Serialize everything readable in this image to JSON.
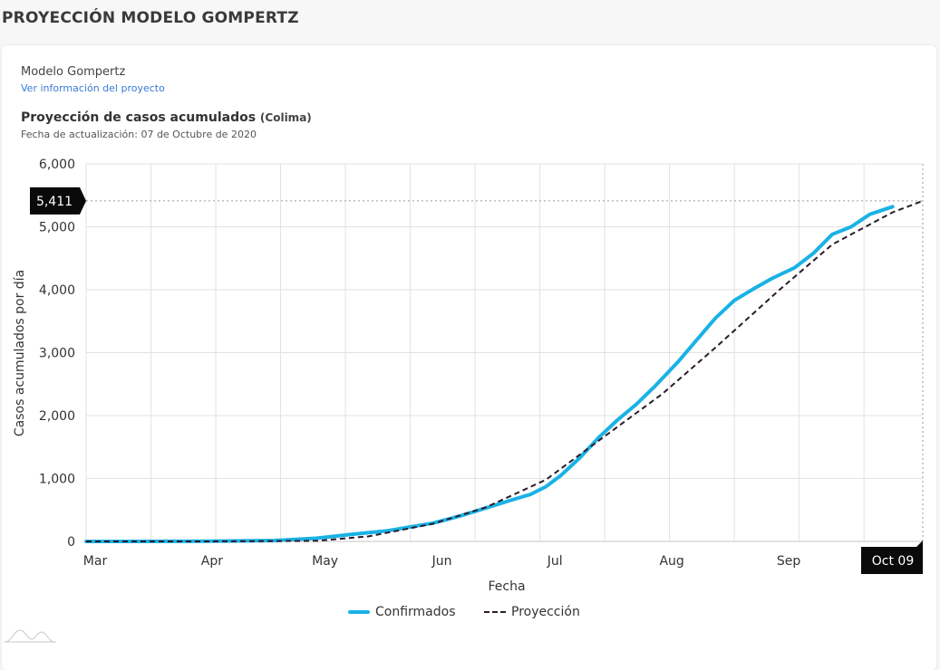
{
  "page_title": "PROYECCIÓN MODELO GOMPERTZ",
  "card": {
    "model_name": "Modelo Gompertz",
    "project_link": "Ver información del proyecto",
    "chart_title": "Proyección de casos acumulados",
    "region": "(Colima)",
    "update_date": "Fecha de actualización: 07 de Octubre de 2020"
  },
  "colors": {
    "confirmed": "#1ab2e5",
    "projection": "#2b1b2b",
    "grid": "#e2e2e2",
    "tooltip_bg": "#0a0a0a"
  },
  "chart_data": {
    "type": "line",
    "xlabel": "Fecha",
    "ylabel": "Casos acumulados por día",
    "ylim": [
      0,
      6000
    ],
    "yticks": [
      "0",
      "1,000",
      "2,000",
      "3,000",
      "4,000",
      "5,000",
      "6,000"
    ],
    "xlim": [
      "2020-03-01",
      "2020-10-09"
    ],
    "xticks": [
      {
        "date": "2020-03-01",
        "label": "Mar"
      },
      {
        "date": "2020-04-01",
        "label": "Apr"
      },
      {
        "date": "2020-05-01",
        "label": "May"
      },
      {
        "date": "2020-06-01",
        "label": "Jun"
      },
      {
        "date": "2020-07-01",
        "label": "Jul"
      },
      {
        "date": "2020-08-01",
        "label": "Aug"
      },
      {
        "date": "2020-09-01",
        "label": "Sep"
      }
    ],
    "grid": true,
    "legend_position": "bottom-center",
    "crosshair": {
      "date": "2020-10-09",
      "value": 5411,
      "x_label": "Oct 09",
      "y_label": "5,411"
    },
    "series": [
      {
        "name": "Confirmados",
        "style": "solid",
        "points": [
          [
            "2020-03-01",
            0
          ],
          [
            "2020-04-01",
            3
          ],
          [
            "2020-04-20",
            15
          ],
          [
            "2020-05-01",
            50
          ],
          [
            "2020-05-10",
            110
          ],
          [
            "2020-05-20",
            170
          ],
          [
            "2020-06-01",
            290
          ],
          [
            "2020-06-08",
            400
          ],
          [
            "2020-06-15",
            530
          ],
          [
            "2020-06-22",
            660
          ],
          [
            "2020-06-27",
            750
          ],
          [
            "2020-07-01",
            870
          ],
          [
            "2020-07-05",
            1050
          ],
          [
            "2020-07-10",
            1330
          ],
          [
            "2020-07-15",
            1650
          ],
          [
            "2020-07-20",
            1930
          ],
          [
            "2020-07-25",
            2180
          ],
          [
            "2020-07-30",
            2470
          ],
          [
            "2020-08-05",
            2850
          ],
          [
            "2020-08-10",
            3200
          ],
          [
            "2020-08-15",
            3550
          ],
          [
            "2020-08-20",
            3830
          ],
          [
            "2020-08-25",
            4010
          ],
          [
            "2020-08-30",
            4180
          ],
          [
            "2020-09-05",
            4350
          ],
          [
            "2020-09-10",
            4580
          ],
          [
            "2020-09-15",
            4880
          ],
          [
            "2020-09-20",
            5000
          ],
          [
            "2020-09-25",
            5200
          ],
          [
            "2020-10-01",
            5320
          ]
        ]
      },
      {
        "name": "Proyección",
        "style": "dashed",
        "points": [
          [
            "2020-03-01",
            0
          ],
          [
            "2020-04-01",
            0
          ],
          [
            "2020-05-01",
            8
          ],
          [
            "2020-05-15",
            80
          ],
          [
            "2020-06-01",
            280
          ],
          [
            "2020-06-15",
            540
          ],
          [
            "2020-07-01",
            980
          ],
          [
            "2020-07-15",
            1600
          ],
          [
            "2020-08-01",
            2350
          ],
          [
            "2020-08-15",
            3080
          ],
          [
            "2020-09-01",
            4000
          ],
          [
            "2020-09-15",
            4720
          ],
          [
            "2020-10-01",
            5230
          ],
          [
            "2020-10-09",
            5411
          ]
        ]
      }
    ]
  }
}
